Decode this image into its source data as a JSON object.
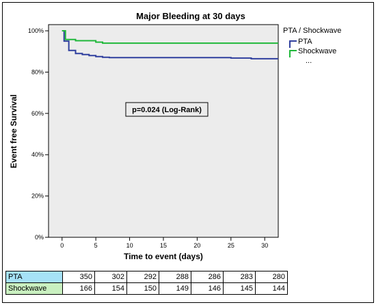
{
  "chart_data": {
    "type": "line",
    "title": "Major Bleeding at 30 days",
    "xlabel": "Time to event (days)",
    "ylabel": "Event free Survival",
    "xlim": [
      -2,
      32
    ],
    "ylim": [
      0,
      1.03
    ],
    "x_ticks": [
      "0",
      "5",
      "10",
      "15",
      "20",
      "25",
      "30"
    ],
    "x_tick_values": [
      0,
      5,
      10,
      15,
      20,
      25,
      30
    ],
    "y_ticks": [
      "0%",
      "20%",
      "40%",
      "60%",
      "80%",
      "100%"
    ],
    "y_tick_values": [
      0,
      0.2,
      0.4,
      0.6,
      0.8,
      1.0
    ],
    "legend": {
      "title": "PTA / Shockwave",
      "placement": "right",
      "extra": "..."
    },
    "annotation": "p=0.024 (Log-Rank)",
    "series": [
      {
        "name": "PTA",
        "color": "#2f3f9e",
        "step": true,
        "x": [
          0,
          0.3,
          1,
          2,
          3,
          4,
          5,
          6,
          7,
          10,
          15,
          20,
          25,
          28,
          32
        ],
        "y": [
          1.0,
          0.95,
          0.905,
          0.89,
          0.885,
          0.88,
          0.875,
          0.872,
          0.87,
          0.87,
          0.87,
          0.87,
          0.868,
          0.865,
          0.865
        ]
      },
      {
        "name": "Shockwave",
        "color": "#1fb83a",
        "step": true,
        "x": [
          0,
          0.5,
          2,
          5,
          6,
          10,
          20,
          32
        ],
        "y": [
          1.0,
          0.958,
          0.952,
          0.945,
          0.94,
          0.94,
          0.94,
          0.94
        ]
      }
    ],
    "risk_table": {
      "rows": [
        {
          "label": "PTA",
          "values": [
            "350",
            "302",
            "292",
            "288",
            "286",
            "283",
            "280"
          ]
        },
        {
          "label": "Shockwave",
          "values": [
            "166",
            "154",
            "150",
            "149",
            "146",
            "145",
            "144"
          ]
        }
      ]
    }
  }
}
